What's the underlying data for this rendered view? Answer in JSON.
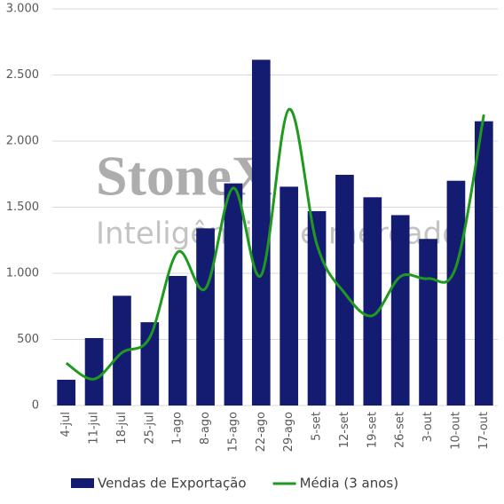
{
  "chart_data": {
    "type": "bar-line",
    "categories": [
      "4-jul",
      "11-jul",
      "18-jul",
      "25-jul",
      "1-ago",
      "8-ago",
      "15-ago",
      "22-ago",
      "29-ago",
      "5-set",
      "12-set",
      "19-set",
      "26-set",
      "3-out",
      "10-out",
      "17-out"
    ],
    "series": [
      {
        "name": "Vendas de Exportação",
        "type": "bar",
        "color": "#141c72",
        "values": [
          195,
          510,
          830,
          630,
          980,
          1340,
          1680,
          2615,
          1655,
          1470,
          1745,
          1575,
          1440,
          1260,
          1700,
          2150
        ]
      },
      {
        "name": "Média (3 anos)",
        "type": "line",
        "color": "#1f9a1f",
        "values": [
          320,
          200,
          400,
          515,
          1160,
          885,
          1645,
          985,
          2240,
          1220,
          850,
          680,
          975,
          960,
          1050,
          2200
        ]
      }
    ],
    "ylim": [
      0,
      3000
    ],
    "yticks": [
      0,
      500,
      {
        "value": 1000,
        "label": "1.000"
      },
      {
        "value": 1500,
        "label": "1.500"
      },
      {
        "value": 2000,
        "label": "2.000"
      },
      {
        "value": 2500,
        "label": "2.500"
      },
      {
        "value": 3000,
        "label": "3.000"
      }
    ],
    "grid": true,
    "watermark": [
      "StoneX",
      "Inteligência de mercado"
    ]
  }
}
